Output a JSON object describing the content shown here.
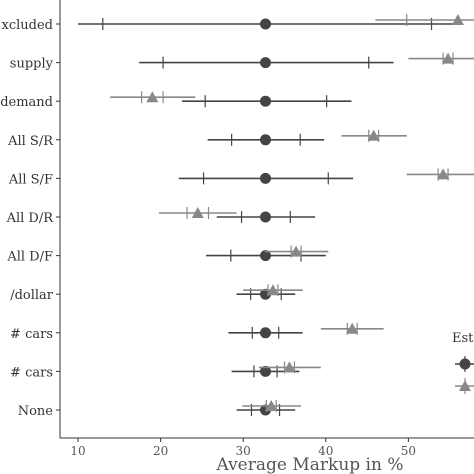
{
  "chart_data": {
    "type": "scatter",
    "subtype": "coefficient-plot-with-error-bars",
    "xlabel": "Average Markup in %",
    "xlim": [
      6,
      65
    ],
    "x_ticks": [
      10,
      20,
      30,
      40,
      50
    ],
    "grid": false,
    "legend": {
      "position": "right",
      "title": "Est",
      "entries": [
        {
          "marker": "circle",
          "color": "#444444"
        },
        {
          "marker": "triangle",
          "color": "#888888"
        }
      ]
    },
    "categories": [
      "xcluded",
      "supply",
      "demand",
      "All S/R",
      "All S/F",
      "All D/R",
      "All D/F",
      "/dollar",
      "# cars",
      "# cars",
      "None"
    ],
    "series": [
      {
        "marker": "circle",
        "color": "#444444",
        "points": [
          {
            "category": "xcluded",
            "value": 32.7,
            "ci_inner": [
              13.0,
              52.8
            ],
            "ci_outer": [
              10.0,
              56.0
            ]
          },
          {
            "category": "supply",
            "value": 32.7,
            "ci_inner": [
              20.3,
              45.2
            ],
            "ci_outer": [
              17.4,
              48.2
            ]
          },
          {
            "category": "demand",
            "value": 32.7,
            "ci_inner": [
              25.4,
              40.1
            ],
            "ci_outer": [
              22.6,
              43.1
            ]
          },
          {
            "category": "All S/R",
            "value": 32.7,
            "ci_inner": [
              28.6,
              36.9
            ],
            "ci_outer": [
              25.7,
              39.8
            ]
          },
          {
            "category": "All S/F",
            "value": 32.7,
            "ci_inner": [
              25.2,
              40.3
            ],
            "ci_outer": [
              22.2,
              43.3
            ]
          },
          {
            "category": "All D/R",
            "value": 32.7,
            "ci_inner": [
              29.8,
              35.7
            ],
            "ci_outer": [
              26.8,
              38.7
            ]
          },
          {
            "category": "All D/F",
            "value": 32.7,
            "ci_inner": [
              28.5,
              37.0
            ],
            "ci_outer": [
              25.5,
              40.0
            ]
          },
          {
            "category": "/dollar",
            "value": 32.7,
            "ci_inner": [
              30.9,
              34.6
            ],
            "ci_outer": [
              29.2,
              36.3
            ]
          },
          {
            "category": "# cars",
            "value": 32.7,
            "ci_inner": [
              31.1,
              34.3
            ],
            "ci_outer": [
              28.2,
              37.2
            ]
          },
          {
            "category": "# cars",
            "value": 32.7,
            "ci_inner": [
              31.3,
              34.1
            ],
            "ci_outer": [
              28.6,
              36.8
            ]
          },
          {
            "category": "None",
            "value": 32.7,
            "ci_inner": [
              31.0,
              34.4
            ],
            "ci_outer": [
              29.2,
              36.3
            ]
          }
        ]
      },
      {
        "marker": "triangle",
        "color": "#888888",
        "points": [
          {
            "category": "xcluded",
            "value": 56.0,
            "ci_inner": [
              49.8,
              62.2
            ],
            "ci_outer": [
              46.0,
              66.0
            ]
          },
          {
            "category": "supply",
            "value": 54.8,
            "ci_inner": [
              54.2,
              55.4
            ],
            "ci_outer": [
              50.0,
              59.5
            ]
          },
          {
            "category": "demand",
            "value": 19.0,
            "ci_inner": [
              17.7,
              20.3
            ],
            "ci_outer": [
              13.9,
              24.2
            ]
          },
          {
            "category": "All S/R",
            "value": 45.8,
            "ci_inner": [
              45.2,
              46.4
            ],
            "ci_outer": [
              41.9,
              49.8
            ]
          },
          {
            "category": "All S/F",
            "value": 54.2,
            "ci_inner": [
              53.6,
              54.8
            ],
            "ci_outer": [
              49.8,
              58.7
            ]
          },
          {
            "category": "All D/R",
            "value": 24.5,
            "ci_inner": [
              23.2,
              25.8
            ],
            "ci_outer": [
              19.8,
              29.2
            ]
          },
          {
            "category": "All D/F",
            "value": 36.4,
            "ci_inner": [
              35.8,
              37.0
            ],
            "ci_outer": [
              32.6,
              40.3
            ]
          },
          {
            "category": "/dollar",
            "value": 33.6,
            "ci_inner": [
              33.0,
              34.2
            ],
            "ci_outer": [
              30.0,
              37.2
            ]
          },
          {
            "category": "# cars",
            "value": 43.2,
            "ci_inner": [
              42.6,
              43.8
            ],
            "ci_outer": [
              39.4,
              47.0
            ]
          },
          {
            "category": "# cars",
            "value": 35.6,
            "ci_inner": [
              35.0,
              36.2
            ],
            "ci_outer": [
              31.9,
              39.4
            ]
          },
          {
            "category": "None",
            "value": 33.4,
            "ci_inner": [
              32.8,
              34.0
            ],
            "ci_outer": [
              29.9,
              37.0
            ]
          }
        ]
      }
    ]
  }
}
